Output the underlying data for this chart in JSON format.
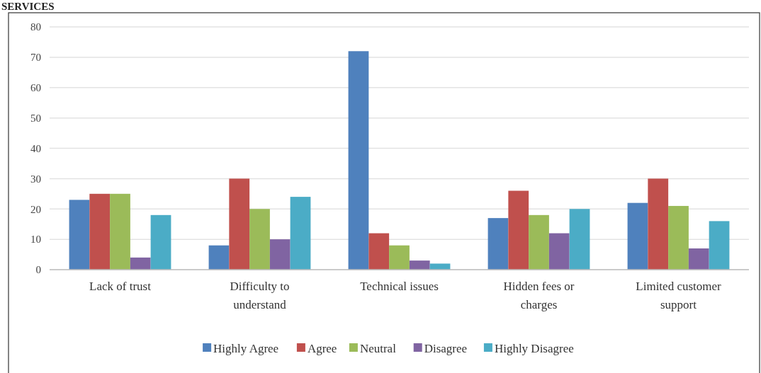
{
  "chart_data": {
    "type": "bar",
    "title": "SERVICES",
    "categories": [
      "Lack of trust",
      "Difficulty to understand",
      "Technical issues",
      "Hidden fees or charges",
      "Limited customer support"
    ],
    "series": [
      {
        "name": "Highly Agree",
        "color": "#4f81bd",
        "values": [
          23,
          8,
          72,
          17,
          22
        ]
      },
      {
        "name": "Agree",
        "color": "#c0504d",
        "values": [
          25,
          30,
          12,
          26,
          30
        ]
      },
      {
        "name": "Neutral",
        "color": "#9bbb59",
        "values": [
          25,
          20,
          8,
          18,
          21
        ]
      },
      {
        "name": "Disagree",
        "color": "#8064a2",
        "values": [
          4,
          10,
          3,
          12,
          7
        ]
      },
      {
        "name": "Highly Disagree",
        "color": "#4bacc6",
        "values": [
          18,
          24,
          2,
          20,
          16
        ]
      }
    ],
    "ylim": [
      0,
      80
    ],
    "yticks": [
      0,
      10,
      20,
      30,
      40,
      50,
      60,
      70,
      80
    ],
    "grid": "y",
    "legend": "bottom"
  }
}
